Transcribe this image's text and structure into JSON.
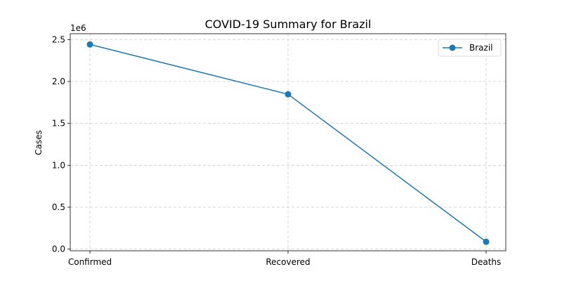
{
  "chart_data": {
    "type": "line",
    "title": "COVID-19 Summary for Brazil",
    "xlabel": "",
    "ylabel": "Cases",
    "categories": [
      "Confirmed",
      "Recovered",
      "Deaths"
    ],
    "series": [
      {
        "name": "Brazil",
        "values": [
          2442000,
          1848000,
          87700
        ],
        "color": "#1f77b4"
      }
    ],
    "ylim": [
      -20000,
      2570000
    ],
    "yticks": [
      0,
      500000,
      1000000,
      1500000,
      2000000,
      2500000
    ],
    "ytick_labels": [
      "0.0",
      "0.5",
      "1.0",
      "1.5",
      "2.0",
      "2.5"
    ],
    "y_offset_label": "1e6",
    "grid": true,
    "legend_position": "top-right"
  }
}
